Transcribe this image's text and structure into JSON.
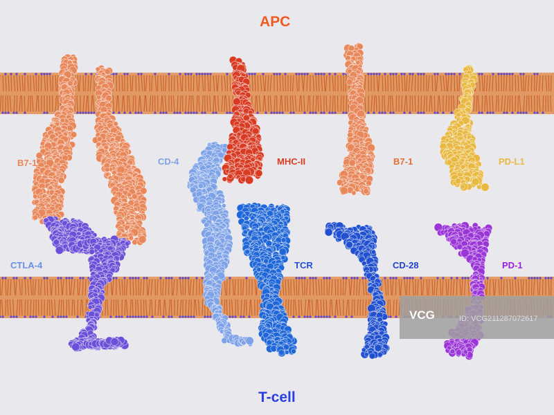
{
  "labels": {
    "apc": "APC",
    "tcell": "T-cell",
    "b7_1_left": "B7-1",
    "cd4": "CD-4",
    "mhc2": "MHC-II",
    "b7_1_right": "B7-1",
    "pdl1": "PD-L1",
    "ctla4": "CTLA-4",
    "tcr": "TCR",
    "cd28": "CD-28",
    "pd1": "PD-1"
  },
  "watermark": {
    "logo": "VCG",
    "id": "ID: VCG211287072617"
  },
  "colors": {
    "apc": "#ef5a24",
    "tcell": "#2a3fe0",
    "b7_1": "#e8875a",
    "cd4": "#7ea2e8",
    "mhc2": "#d83a22",
    "pdl1": "#e8b840",
    "ctla4": "#6a4fd8",
    "tcr": "#1f66d8",
    "cd28": "#2050d0",
    "pd1": "#9a35d8",
    "membrane": "#e08a4a"
  }
}
